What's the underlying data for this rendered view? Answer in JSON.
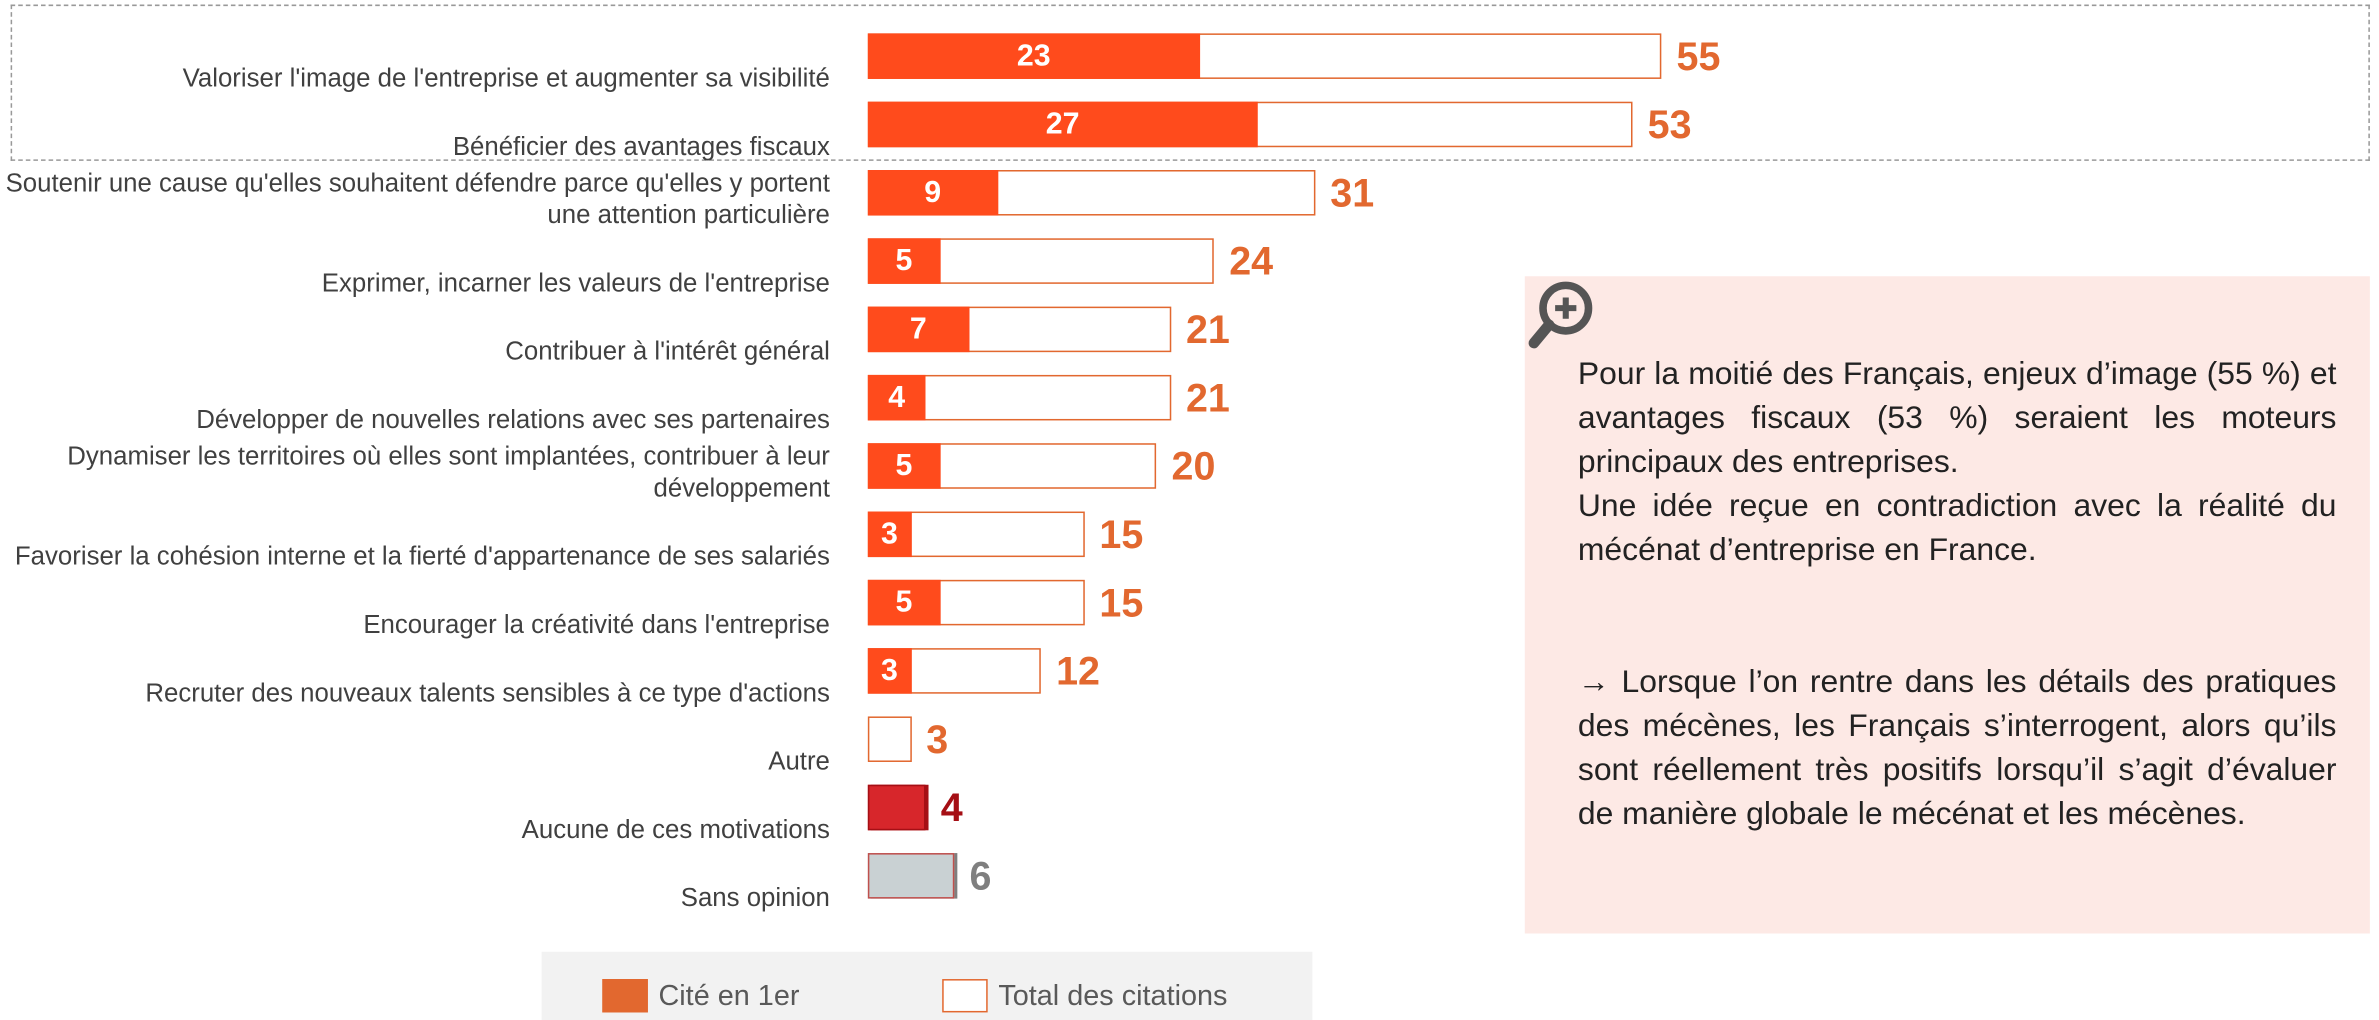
{
  "chart_data": {
    "type": "bar",
    "orientation": "horizontal",
    "categories": [
      "Valoriser l'image de l'entreprise et augmenter sa visibilité",
      "Bénéficier des avantages fiscaux",
      "Soutenir une cause qu'elles souhaitent défendre parce qu'elles y portent une attention particulière",
      "Exprimer, incarner les valeurs de l'entreprise",
      "Contribuer à l'intérêt général",
      "Développer de nouvelles relations avec ses partenaires",
      "Dynamiser les territoires où elles sont implantées, contribuer à leur développement",
      "Favoriser la cohésion interne et la fierté d'appartenance de ses salariés",
      "Encourager la créativité dans l'entreprise",
      "Recruter des nouveaux talents sensibles à ce type d'actions",
      "Autre",
      "Aucune de ces motivations",
      "Sans opinion"
    ],
    "series": [
      {
        "name": "Cité en 1er",
        "color": "#ff4b1c",
        "values": [
          23,
          27,
          9,
          5,
          7,
          4,
          5,
          3,
          5,
          3,
          null,
          null,
          null
        ]
      },
      {
        "name": "Total des citations",
        "color": "#e2682f",
        "values": [
          55,
          53,
          31,
          24,
          21,
          21,
          20,
          15,
          15,
          12,
          3,
          4,
          6
        ],
        "colors": [
          "#e2682f",
          "#e2682f",
          "#e2682f",
          "#e2682f",
          "#e2682f",
          "#e2682f",
          "#e2682f",
          "#e2682f",
          "#e2682f",
          "#e2682f",
          "#e2682f",
          "#a50f15",
          "#7f7f7f"
        ]
      }
    ]
  },
  "note": {
    "paragraphs": [
      "Pour la moitié des Français, enjeux d’image (55 %) et avantages fiscaux (53 %) seraient les moteurs principaux des entreprises.",
      "Une idée reçue en contradiction avec la réalité du mécénat d’entreprise en France.",
      "→ Lorsque l’on rentre dans les détails des pratiques des mécènes, les Français s’interrogent, alors qu’ils sont réellement très positifs lorsqu’il s’agit d’évaluer de manière globale le mécénat et les mécènes."
    ]
  }
}
